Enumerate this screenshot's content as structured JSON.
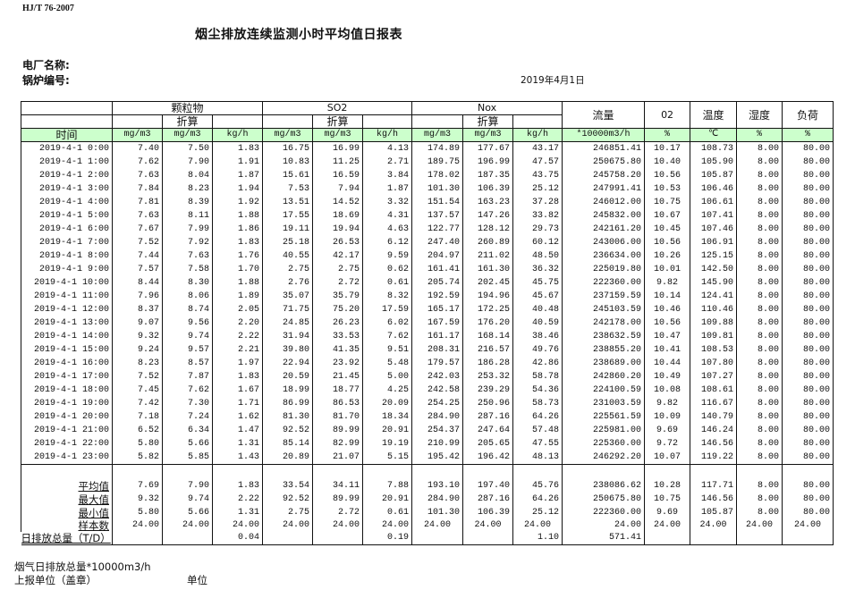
{
  "standard": "HJ/T  76-2007",
  "title": "烟尘排放连续监测小时平均值日报表",
  "plant_label": "电厂名称:",
  "boiler_label": "锅炉编号:",
  "report_date": "2019年4月1日",
  "header": {
    "groups": {
      "particulate": "颗粒物",
      "so2": "SO2",
      "nox": "Nox",
      "flow": "流量",
      "o2": "02",
      "temp": "温度",
      "humidity": "湿度",
      "load": "负荷"
    },
    "converted": "折算",
    "time": "时间",
    "units": [
      "mg/m3",
      "mg/m3",
      "kg/h",
      "mg/m3",
      "mg/m3",
      "kg/h",
      "mg/m3",
      "mg/m3",
      "kg/h",
      "*10000m3/h",
      "%",
      "℃",
      "%",
      "%"
    ],
    "header_color": "#ccffcc"
  },
  "rows": [
    [
      "2019-4-1 0:00",
      "7.40",
      "7.50",
      "1.83",
      "16.75",
      "16.99",
      "4.13",
      "174.89",
      "177.67",
      "43.17",
      "246851.41",
      "10.17",
      "108.73",
      "8.00",
      "80.00"
    ],
    [
      "2019-4-1 1:00",
      "7.62",
      "7.90",
      "1.91",
      "10.83",
      "11.25",
      "2.71",
      "189.75",
      "196.99",
      "47.57",
      "250675.80",
      "10.40",
      "105.90",
      "8.00",
      "80.00"
    ],
    [
      "2019-4-1 2:00",
      "7.63",
      "8.04",
      "1.87",
      "15.61",
      "16.59",
      "3.84",
      "178.02",
      "187.35",
      "43.75",
      "245758.20",
      "10.56",
      "105.87",
      "8.00",
      "80.00"
    ],
    [
      "2019-4-1 3:00",
      "7.84",
      "8.23",
      "1.94",
      "7.53",
      "7.94",
      "1.87",
      "101.30",
      "106.39",
      "25.12",
      "247991.41",
      "10.53",
      "106.46",
      "8.00",
      "80.00"
    ],
    [
      "2019-4-1 4:00",
      "7.81",
      "8.39",
      "1.92",
      "13.51",
      "14.52",
      "3.32",
      "151.54",
      "163.23",
      "37.28",
      "246012.00",
      "10.75",
      "106.61",
      "8.00",
      "80.00"
    ],
    [
      "2019-4-1 5:00",
      "7.63",
      "8.11",
      "1.88",
      "17.55",
      "18.69",
      "4.31",
      "137.57",
      "147.26",
      "33.82",
      "245832.00",
      "10.67",
      "107.41",
      "8.00",
      "80.00"
    ],
    [
      "2019-4-1 6:00",
      "7.67",
      "7.99",
      "1.86",
      "19.11",
      "19.94",
      "4.63",
      "122.77",
      "128.12",
      "29.73",
      "242161.20",
      "10.45",
      "107.46",
      "8.00",
      "80.00"
    ],
    [
      "2019-4-1 7:00",
      "7.52",
      "7.92",
      "1.83",
      "25.18",
      "26.53",
      "6.12",
      "247.40",
      "260.89",
      "60.12",
      "243006.00",
      "10.56",
      "106.91",
      "8.00",
      "80.00"
    ],
    [
      "2019-4-1 8:00",
      "7.44",
      "7.63",
      "1.76",
      "40.55",
      "42.17",
      "9.59",
      "204.97",
      "211.02",
      "48.50",
      "236634.00",
      "10.26",
      "125.15",
      "8.00",
      "80.00"
    ],
    [
      "2019-4-1 9:00",
      "7.57",
      "7.58",
      "1.70",
      "2.75",
      "2.75",
      "0.62",
      "161.41",
      "161.30",
      "36.32",
      "225019.80",
      "10.01",
      "142.50",
      "8.00",
      "80.00"
    ],
    [
      "2019-4-1 10:00",
      "8.44",
      "8.30",
      "1.88",
      "2.76",
      "2.72",
      "0.61",
      "205.74",
      "202.45",
      "45.75",
      "222360.00",
      "9.82",
      "145.90",
      "8.00",
      "80.00"
    ],
    [
      "2019-4-1 11:00",
      "7.96",
      "8.06",
      "1.89",
      "35.07",
      "35.79",
      "8.32",
      "192.59",
      "194.96",
      "45.67",
      "237159.59",
      "10.14",
      "124.41",
      "8.00",
      "80.00"
    ],
    [
      "2019-4-1 12:00",
      "8.37",
      "8.74",
      "2.05",
      "71.75",
      "75.20",
      "17.59",
      "165.17",
      "172.25",
      "40.48",
      "245103.59",
      "10.46",
      "110.46",
      "8.00",
      "80.00"
    ],
    [
      "2019-4-1 13:00",
      "9.07",
      "9.56",
      "2.20",
      "24.85",
      "26.23",
      "6.02",
      "167.59",
      "176.20",
      "40.59",
      "242178.00",
      "10.56",
      "109.88",
      "8.00",
      "80.00"
    ],
    [
      "2019-4-1 14:00",
      "9.32",
      "9.74",
      "2.22",
      "31.94",
      "33.53",
      "7.62",
      "161.17",
      "168.14",
      "38.46",
      "238632.59",
      "10.47",
      "109.81",
      "8.00",
      "80.00"
    ],
    [
      "2019-4-1 15:00",
      "9.24",
      "9.57",
      "2.21",
      "39.80",
      "41.35",
      "9.51",
      "208.31",
      "216.57",
      "49.76",
      "238855.20",
      "10.41",
      "108.53",
      "8.00",
      "80.00"
    ],
    [
      "2019-4-1 16:00",
      "8.23",
      "8.57",
      "1.97",
      "22.94",
      "23.92",
      "5.48",
      "179.57",
      "186.28",
      "42.86",
      "238689.00",
      "10.44",
      "107.80",
      "8.00",
      "80.00"
    ],
    [
      "2019-4-1 17:00",
      "7.52",
      "7.87",
      "1.83",
      "20.59",
      "21.45",
      "5.00",
      "242.03",
      "253.32",
      "58.78",
      "242860.20",
      "10.49",
      "107.27",
      "8.00",
      "80.00"
    ],
    [
      "2019-4-1 18:00",
      "7.45",
      "7.62",
      "1.67",
      "18.99",
      "18.77",
      "4.25",
      "242.58",
      "239.29",
      "54.36",
      "224100.59",
      "10.08",
      "108.61",
      "8.00",
      "80.00"
    ],
    [
      "2019-4-1 19:00",
      "7.42",
      "7.30",
      "1.71",
      "86.99",
      "86.53",
      "20.09",
      "254.25",
      "250.96",
      "58.73",
      "231003.59",
      "9.82",
      "116.67",
      "8.00",
      "80.00"
    ],
    [
      "2019-4-1 20:00",
      "7.18",
      "7.24",
      "1.62",
      "81.30",
      "81.70",
      "18.34",
      "284.90",
      "287.16",
      "64.26",
      "225561.59",
      "10.09",
      "140.79",
      "8.00",
      "80.00"
    ],
    [
      "2019-4-1 21:00",
      "6.52",
      "6.34",
      "1.47",
      "92.52",
      "89.99",
      "20.91",
      "254.37",
      "247.64",
      "57.48",
      "225981.00",
      "9.69",
      "146.24",
      "8.00",
      "80.00"
    ],
    [
      "2019-4-1 22:00",
      "5.80",
      "5.66",
      "1.31",
      "85.14",
      "82.99",
      "19.19",
      "210.99",
      "205.65",
      "47.55",
      "225360.00",
      "9.72",
      "146.56",
      "8.00",
      "80.00"
    ],
    [
      "2019-4-1 23:00",
      "5.82",
      "5.85",
      "1.43",
      "20.89",
      "21.07",
      "5.15",
      "195.42",
      "196.42",
      "48.13",
      "246292.20",
      "10.07",
      "119.22",
      "8.00",
      "80.00"
    ]
  ],
  "stats": [
    [
      "平均值",
      "7.69",
      "7.90",
      "1.83",
      "33.54",
      "34.11",
      "7.88",
      "193.10",
      "197.40",
      "45.76",
      "238086.62",
      "10.28",
      "117.71",
      "8.00",
      "80.00"
    ],
    [
      "最大值",
      "9.32",
      "9.74",
      "2.22",
      "92.52",
      "89.99",
      "20.91",
      "284.90",
      "287.16",
      "64.26",
      "250675.80",
      "10.75",
      "146.56",
      "8.00",
      "80.00"
    ],
    [
      "最小值",
      "5.80",
      "5.66",
      "1.31",
      "2.75",
      "2.72",
      "0.61",
      "101.30",
      "106.39",
      "25.12",
      "222360.00",
      "9.69",
      "105.87",
      "8.00",
      "80.00"
    ],
    [
      "样本数",
      "24.00",
      "24.00",
      "24.00",
      "24.00",
      "24.00",
      "24.00",
      "24.00",
      "24.00",
      "24.00",
      "24.00",
      "24.00",
      "24.00",
      "24.00",
      "24.00"
    ]
  ],
  "daily_total": [
    "日排放总量（T/D）",
    "",
    "",
    "0.04",
    "",
    "",
    "0.19",
    "",
    "",
    "1.10",
    "571.41",
    "",
    "",
    "",
    ""
  ],
  "footer": {
    "flue_gas_total": "烟气日排放总量*10000m3/h",
    "reporting_unit": "上报单位（盖章）",
    "unit": "单位"
  }
}
